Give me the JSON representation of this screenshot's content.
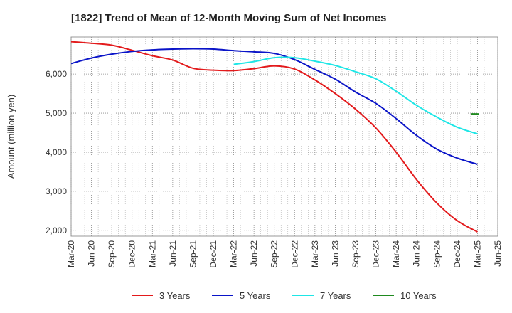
{
  "chart_data": {
    "type": "line",
    "title": "[1822]  Trend of Mean of 12-Month Moving Sum of Net Incomes",
    "ylabel": "Amount (million yen)",
    "xlabel": "",
    "x_ticks": [
      "Mar-20",
      "Jun-20",
      "Sep-20",
      "Dec-20",
      "Mar-21",
      "Jun-21",
      "Sep-21",
      "Dec-21",
      "Mar-22",
      "Jun-22",
      "Sep-22",
      "Dec-22",
      "Mar-23",
      "Jun-23",
      "Sep-23",
      "Dec-23",
      "Mar-24",
      "Jun-24",
      "Sep-24",
      "Dec-24",
      "Mar-25",
      "Jun-25"
    ],
    "y_ticks": [
      2000,
      3000,
      4000,
      5000,
      6000
    ],
    "y_tick_labels": [
      "2,000",
      "3,000",
      "4,000",
      "5,000",
      "6,000"
    ],
    "ylim": [
      1850,
      6950
    ],
    "grid": true,
    "legend_position": "bottom",
    "series": [
      {
        "name": "3 Years",
        "color": "#e31a1c",
        "points": [
          [
            "Mar-20",
            6830
          ],
          [
            "Jun-20",
            6790
          ],
          [
            "Sep-20",
            6740
          ],
          [
            "Dec-20",
            6610
          ],
          [
            "Mar-21",
            6470
          ],
          [
            "Jun-21",
            6360
          ],
          [
            "Sep-21",
            6150
          ],
          [
            "Dec-21",
            6100
          ],
          [
            "Mar-22",
            6090
          ],
          [
            "Jun-22",
            6140
          ],
          [
            "Sep-22",
            6210
          ],
          [
            "Dec-22",
            6130
          ],
          [
            "Mar-23",
            5850
          ],
          [
            "Jun-23",
            5500
          ],
          [
            "Sep-23",
            5100
          ],
          [
            "Dec-23",
            4620
          ],
          [
            "Mar-24",
            4000
          ],
          [
            "Jun-24",
            3300
          ],
          [
            "Sep-24",
            2700
          ],
          [
            "Dec-24",
            2250
          ],
          [
            "Mar-25",
            1960
          ]
        ]
      },
      {
        "name": "5 Years",
        "color": "#0a14c8",
        "points": [
          [
            "Mar-20",
            6270
          ],
          [
            "Jun-20",
            6410
          ],
          [
            "Sep-20",
            6510
          ],
          [
            "Dec-20",
            6580
          ],
          [
            "Mar-21",
            6620
          ],
          [
            "Jun-21",
            6640
          ],
          [
            "Sep-21",
            6650
          ],
          [
            "Dec-21",
            6640
          ],
          [
            "Mar-22",
            6600
          ],
          [
            "Jun-22",
            6570
          ],
          [
            "Sep-22",
            6530
          ],
          [
            "Dec-22",
            6370
          ],
          [
            "Mar-23",
            6120
          ],
          [
            "Jun-23",
            5870
          ],
          [
            "Sep-23",
            5540
          ],
          [
            "Dec-23",
            5250
          ],
          [
            "Mar-24",
            4860
          ],
          [
            "Jun-24",
            4430
          ],
          [
            "Sep-24",
            4080
          ],
          [
            "Dec-24",
            3850
          ],
          [
            "Mar-25",
            3690
          ]
        ]
      },
      {
        "name": "7 Years",
        "color": "#1ee6e6",
        "points": [
          [
            "Mar-22",
            6250
          ],
          [
            "Jun-22",
            6320
          ],
          [
            "Sep-22",
            6420
          ],
          [
            "Dec-22",
            6420
          ],
          [
            "Mar-23",
            6330
          ],
          [
            "Jun-23",
            6220
          ],
          [
            "Sep-23",
            6060
          ],
          [
            "Dec-23",
            5880
          ],
          [
            "Mar-24",
            5560
          ],
          [
            "Jun-24",
            5200
          ],
          [
            "Sep-24",
            4900
          ],
          [
            "Dec-24",
            4640
          ],
          [
            "Mar-25",
            4470
          ]
        ]
      },
      {
        "name": "10 Years",
        "color": "#1f8a1f",
        "points": [
          [
            "Mar-25",
            4980
          ]
        ]
      }
    ]
  }
}
